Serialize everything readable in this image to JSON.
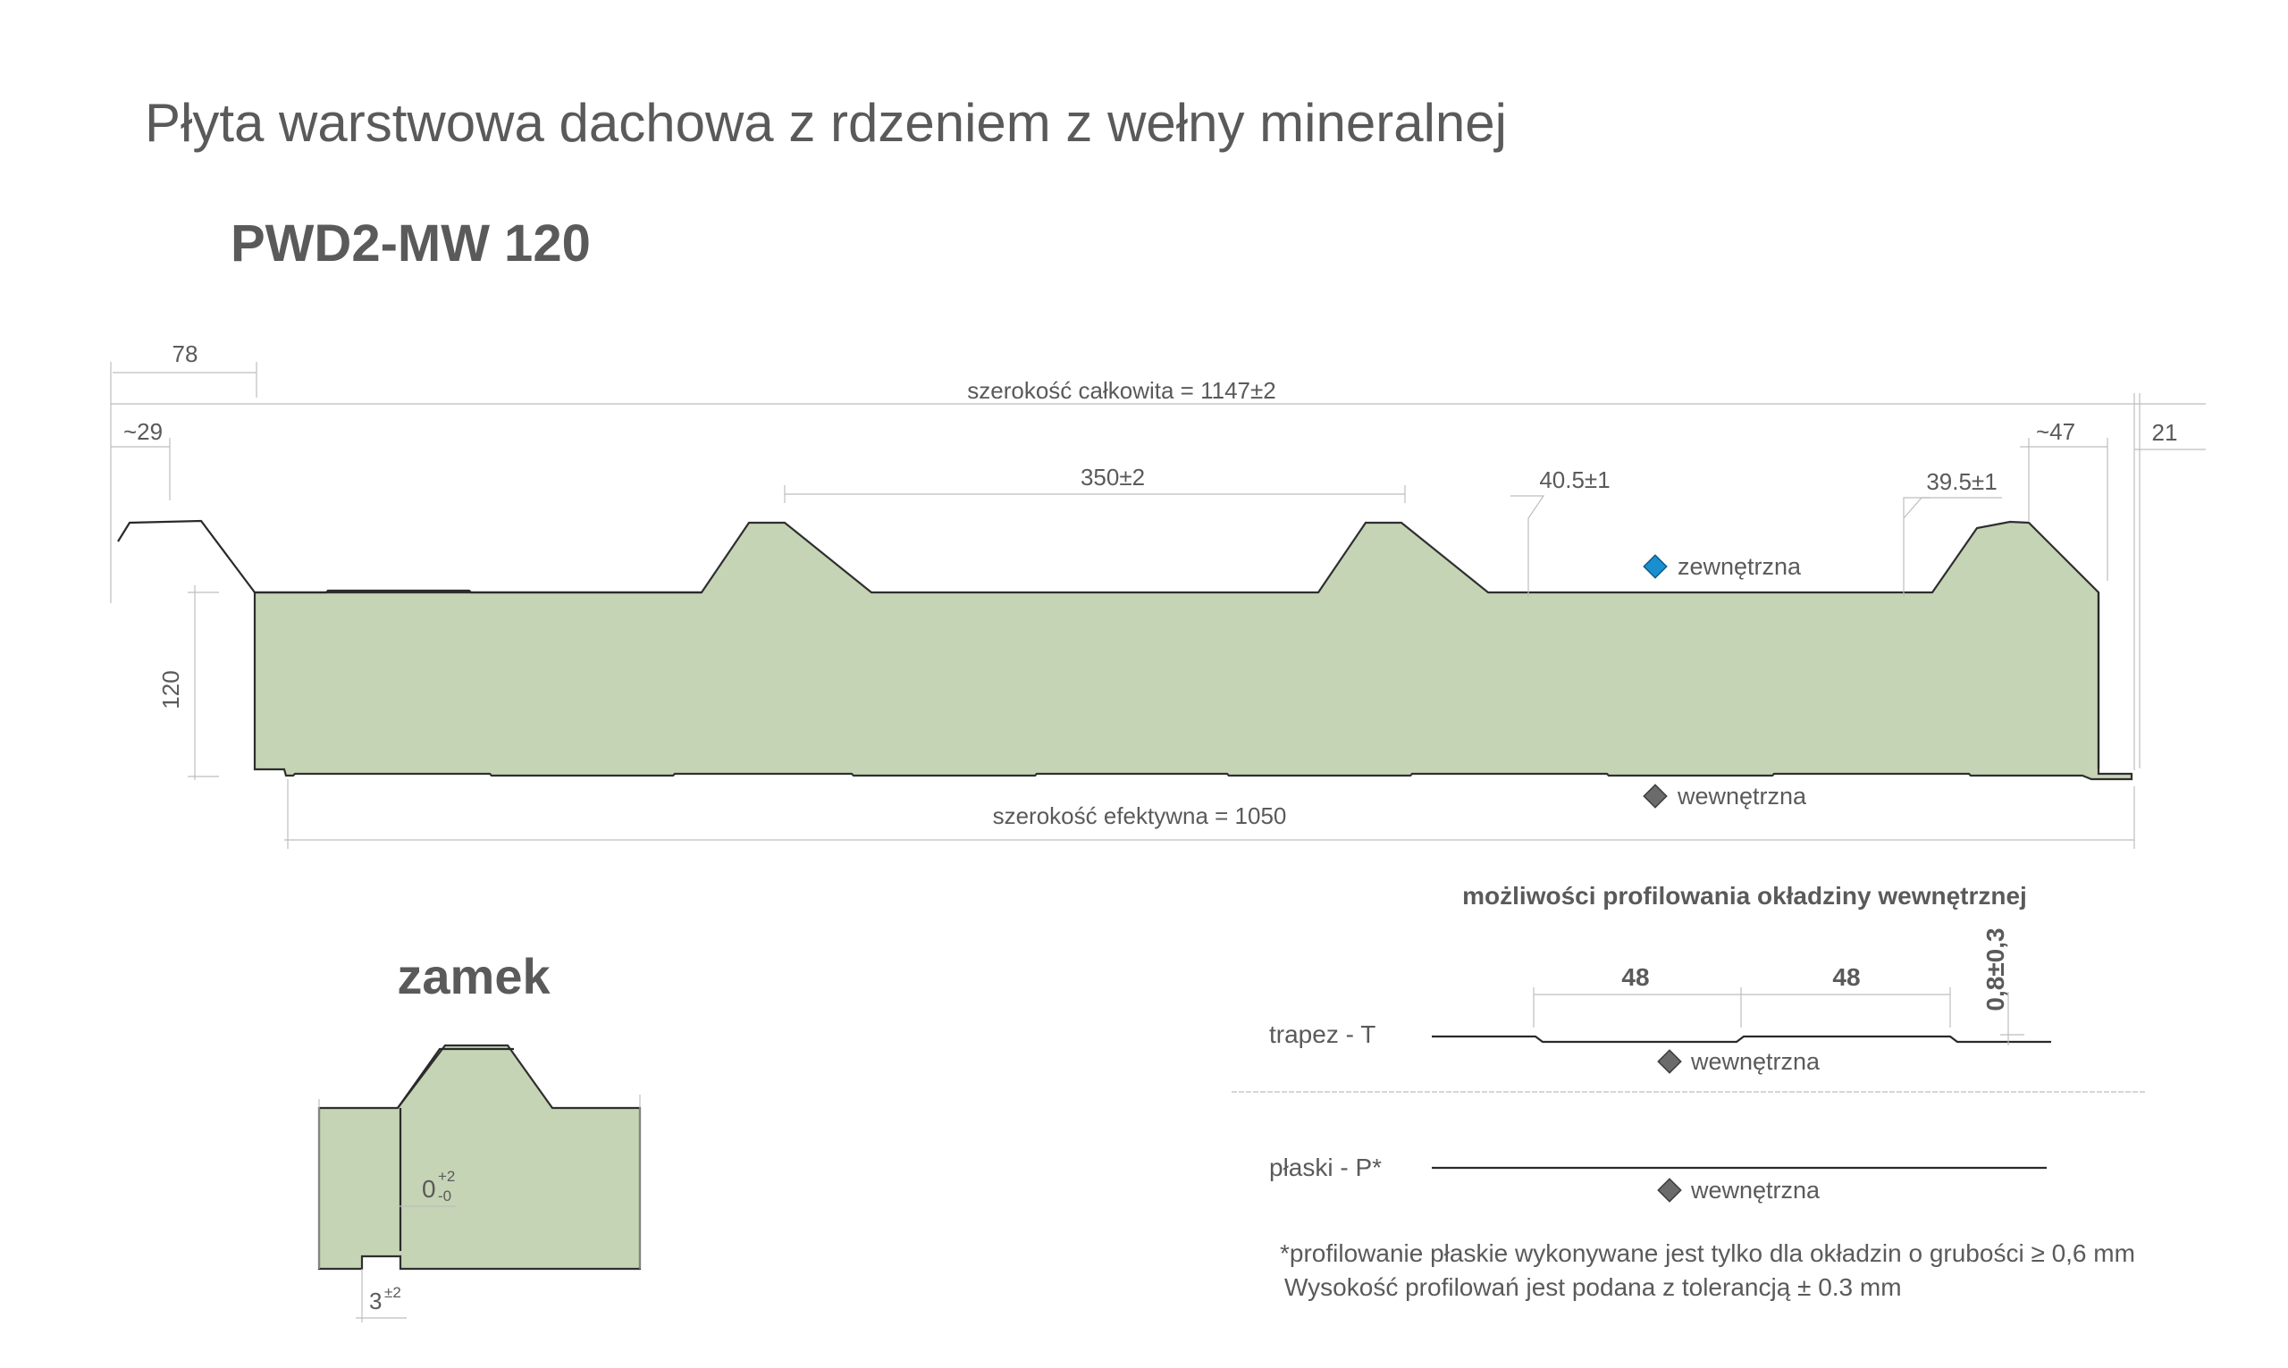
{
  "header": {
    "title": "Płyta warstwowa dachowa z rdzeniem z wełny mineralnej",
    "model": "PWD2-MW 120"
  },
  "profile": {
    "total_width": "szerokość całkowita = 1147±2",
    "effective_width": "szerokość efektywna = 1050",
    "dim_78": "78",
    "dim_29": "~29",
    "dim_350": "350±2",
    "dim_40_5": "40.5±1",
    "dim_39_5": "39.5±1",
    "dim_47": "~47",
    "dim_21": "21",
    "dim_120": "120",
    "outer_face": "zewnętrzna",
    "inner_face": "wewnętrzna",
    "outer_color": "#1a8fd0",
    "inner_color": "#6b6b6b",
    "core_color": "#c6d4b6"
  },
  "lock": {
    "title": "zamek",
    "gap_base": "0",
    "gap_plus": "+2",
    "gap_minus": "-0",
    "offset_base": "3",
    "offset_sup": "±2"
  },
  "profiling": {
    "title": "możliwości profilowania okładziny wewnętrznej",
    "trapez_label": "trapez - T",
    "trapez_dim1": "48",
    "trapez_dim2": "48",
    "trapez_height": "0,8±0,3",
    "trapez_face": "wewnętrzna",
    "flat_label": "płaski - P*",
    "flat_face": "wewnętrzna",
    "note_line1": "*profilowanie płaskie wykonywane jest tylko dla okładzin o grubości ≥ 0,6 mm",
    "note_line2": "Wysokość profilowań jest podana z tolerancją ± 0.3 mm"
  }
}
